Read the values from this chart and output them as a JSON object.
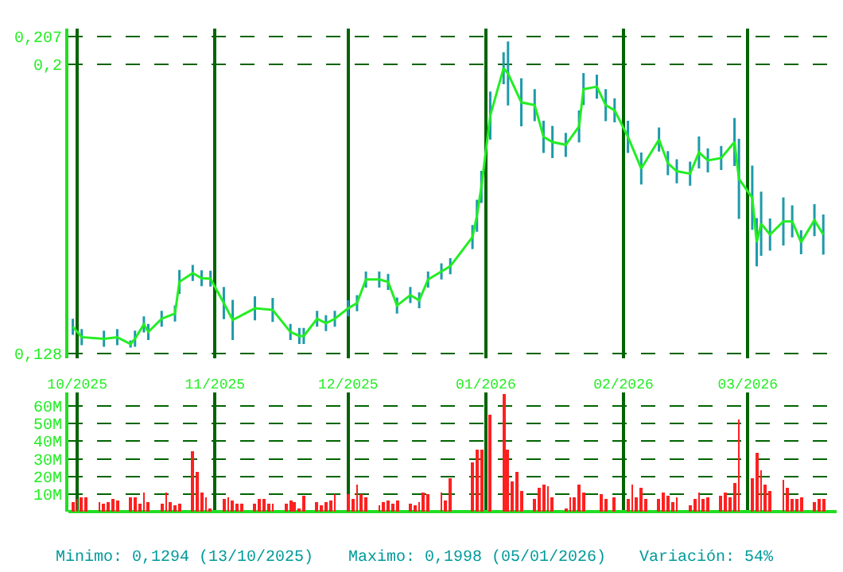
{
  "chart_data": [
    {
      "type": "line",
      "marker": "none",
      "line_style": "solid",
      "grid": true,
      "tick_labels": "y",
      "x": [
        "2025-09-30",
        "2025-10-02",
        "2025-10-07",
        "2025-10-10",
        "2025-10-13",
        "2025-10-14",
        "2025-10-16",
        "2025-10-17",
        "2025-10-20",
        "2025-10-23",
        "2025-10-24",
        "2025-10-27",
        "2025-10-29",
        "2025-10-31",
        "2025-11-03",
        "2025-11-05",
        "2025-11-10",
        "2025-11-14",
        "2025-11-18",
        "2025-11-20",
        "2025-11-21",
        "2025-11-24",
        "2025-11-26",
        "2025-11-28",
        "2025-12-01",
        "2025-12-03",
        "2025-12-05",
        "2025-12-08",
        "2025-12-10",
        "2025-12-12",
        "2025-12-15",
        "2025-12-17",
        "2025-12-19",
        "2025-12-22",
        "2025-12-24",
        "2025-12-29",
        "2025-12-30",
        "2025-12-31",
        "2026-01-02",
        "2026-01-05",
        "2026-01-06",
        "2026-01-09",
        "2026-01-12",
        "2026-01-14",
        "2026-01-16",
        "2026-01-19",
        "2026-01-22",
        "2026-01-23",
        "2026-01-26",
        "2026-01-28",
        "2026-01-30",
        "2026-02-02",
        "2026-02-05",
        "2026-02-09",
        "2026-02-11",
        "2026-02-13",
        "2026-02-16",
        "2026-02-18",
        "2026-02-20",
        "2026-02-23",
        "2026-02-26",
        "2026-02-27",
        "2026-03-02",
        "2026-03-03",
        "2026-03-04",
        "2026-03-06",
        "2026-03-09",
        "2026-03-11",
        "2026-03-13",
        "2026-03-16",
        "2026-03-18"
      ],
      "series": [
        {
          "color": "#22ee22",
          "values": [
            0.1346,
            0.132,
            0.1316,
            0.132,
            0.1303,
            0.1316,
            0.1352,
            0.1333,
            0.1366,
            0.1379,
            0.1458,
            0.148,
            0.1467,
            0.1466,
            0.1405,
            0.1363,
            0.1392,
            0.1388,
            0.1333,
            0.1323,
            0.1323,
            0.1366,
            0.1355,
            0.1366,
            0.1392,
            0.1405,
            0.1464,
            0.1464,
            0.1458,
            0.1399,
            0.1425,
            0.1412,
            0.1464,
            0.1484,
            0.1497,
            0.157,
            0.1623,
            0.1695,
            0.1873,
            0.1991,
            0.1978,
            0.1906,
            0.1899,
            0.182,
            0.1807,
            0.18,
            0.1846,
            0.1939,
            0.1945,
            0.1899,
            0.1886,
            0.182,
            0.1741,
            0.1813,
            0.1754,
            0.1734,
            0.1728,
            0.1781,
            0.1761,
            0.1767,
            0.1807,
            0.1715,
            0.1668,
            0.1557,
            0.1603,
            0.1576,
            0.1609,
            0.1609,
            0.1557,
            0.1612,
            0.1576
          ],
          "errors": [
            0.002,
            0.002,
            0.002,
            0.002,
            0.0009,
            0.002,
            0.002,
            0.002,
            0.002,
            0.002,
            0.003,
            0.002,
            0.002,
            0.002,
            0.004,
            0.005,
            0.003,
            0.003,
            0.002,
            0.002,
            0.002,
            0.002,
            0.002,
            0.002,
            0.002,
            0.002,
            0.002,
            0.002,
            0.002,
            0.002,
            0.002,
            0.002,
            0.002,
            0.002,
            0.002,
            0.003,
            0.004,
            0.004,
            0.006,
            0.004,
            0.008,
            0.006,
            0.004,
            0.004,
            0.004,
            0.003,
            0.004,
            0.004,
            0.003,
            0.004,
            0.003,
            0.004,
            0.004,
            0.003,
            0.003,
            0.003,
            0.003,
            0.004,
            0.003,
            0.003,
            0.006,
            0.01,
            0.008,
            0.006,
            0.008,
            0.004,
            0.006,
            0.004,
            0.003,
            0.004,
            0.005
          ]
        }
      ],
      "xlim": [
        "2025-09-29",
        "2026-03-21"
      ],
      "xticks": [
        {
          "value": "2025-10-01",
          "label": null
        },
        {
          "value": "2025-11-01",
          "label": null
        },
        {
          "value": "2025-12-01",
          "label": null
        },
        {
          "value": "2026-01-01",
          "label": null
        },
        {
          "value": "2026-02-01",
          "label": null
        },
        {
          "value": "2026-03-01",
          "label": null
        }
      ],
      "ylim": [
        0.1268,
        0.209
      ],
      "yticks": [
        {
          "value": 0.128,
          "label": "0,128"
        },
        {
          "value": 0.2,
          "label": "0,2"
        },
        {
          "value": 0.207,
          "label": "0,207"
        }
      ]
    },
    {
      "type": "bar",
      "grid": true,
      "x": [
        "2025-09-30",
        "2025-10-01",
        "2025-10-02",
        "2025-10-03",
        "2025-10-06",
        "2025-10-07",
        "2025-10-08",
        "2025-10-09",
        "2025-10-10",
        "2025-10-13",
        "2025-10-14",
        "2025-10-15",
        "2025-10-16",
        "2025-10-17",
        "2025-10-20",
        "2025-10-21",
        "2025-10-22",
        "2025-10-23",
        "2025-10-24",
        "2025-10-27",
        "2025-10-28",
        "2025-10-29",
        "2025-10-30",
        "2025-10-31",
        "2025-11-03",
        "2025-11-04",
        "2025-11-05",
        "2025-11-06",
        "2025-11-07",
        "2025-11-10",
        "2025-11-11",
        "2025-11-12",
        "2025-11-13",
        "2025-11-14",
        "2025-11-17",
        "2025-11-18",
        "2025-11-19",
        "2025-11-20",
        "2025-11-21",
        "2025-11-24",
        "2025-11-25",
        "2025-11-26",
        "2025-11-27",
        "2025-11-28",
        "2025-12-01",
        "2025-12-02",
        "2025-12-03",
        "2025-12-04",
        "2025-12-05",
        "2025-12-08",
        "2025-12-09",
        "2025-12-10",
        "2025-12-11",
        "2025-12-12",
        "2025-12-15",
        "2025-12-16",
        "2025-12-17",
        "2025-12-18",
        "2025-12-19",
        "2025-12-22",
        "2025-12-23",
        "2025-12-24",
        "2025-12-29",
        "2025-12-30",
        "2025-12-31",
        "2026-01-02",
        "2026-01-05",
        "2026-01-06",
        "2026-01-07",
        "2026-01-08",
        "2026-01-09",
        "2026-01-12",
        "2026-01-13",
        "2026-01-14",
        "2026-01-15",
        "2026-01-16",
        "2026-01-19",
        "2026-01-20",
        "2026-01-21",
        "2026-01-22",
        "2026-01-23",
        "2026-01-27",
        "2026-01-28",
        "2026-01-30",
        "2026-02-02",
        "2026-02-03",
        "2026-02-04",
        "2026-02-05",
        "2026-02-06",
        "2026-02-09",
        "2026-02-10",
        "2026-02-11",
        "2026-02-12",
        "2026-02-13",
        "2026-02-16",
        "2026-02-17",
        "2026-02-18",
        "2026-02-19",
        "2026-02-20",
        "2026-02-23",
        "2026-02-24",
        "2026-02-25",
        "2026-02-26",
        "2026-02-27",
        "2026-03-02",
        "2026-03-03",
        "2026-03-04",
        "2026-03-05",
        "2026-03-06",
        "2026-03-09",
        "2026-03-10",
        "2026-03-11",
        "2026-03-12",
        "2026-03-13",
        "2026-03-16",
        "2026-03-17",
        "2026-03-18"
      ],
      "series": [
        {
          "color": "#ff2020",
          "values": [
            5,
            7,
            8,
            8,
            5,
            4,
            5,
            7,
            6,
            8,
            8,
            4,
            11,
            5,
            4,
            11,
            5,
            3,
            4,
            34,
            22,
            11,
            8,
            1,
            7,
            8,
            6,
            4,
            4,
            4,
            7,
            7,
            4,
            4,
            4,
            6,
            5,
            1,
            9,
            5,
            3,
            5,
            6,
            10,
            10,
            7,
            15,
            10,
            8,
            3,
            5,
            6,
            4,
            6,
            4,
            3,
            5,
            11,
            10,
            11,
            6,
            19,
            28,
            35,
            35,
            55,
            67,
            35,
            17,
            22,
            12,
            7,
            13,
            15,
            14,
            8,
            1,
            8,
            8,
            15,
            11,
            10,
            7,
            8,
            7,
            15,
            8,
            13,
            7,
            7,
            11,
            9,
            5,
            8,
            3,
            7,
            11,
            7,
            8,
            9,
            11,
            8,
            16,
            52,
            19,
            33,
            23,
            15,
            12,
            18,
            13,
            7,
            7,
            8,
            5,
            7,
            7
          ]
        }
      ],
      "xlim": [
        "2025-09-29",
        "2026-03-21"
      ],
      "xticks": [
        {
          "value": "2025-10-01",
          "label": "10/2025"
        },
        {
          "value": "2025-11-01",
          "label": "11/2025"
        },
        {
          "value": "2025-12-01",
          "label": "12/2025"
        },
        {
          "value": "2026-01-01",
          "label": "01/2026"
        },
        {
          "value": "2026-02-01",
          "label": "02/2026"
        },
        {
          "value": "2026-03-01",
          "label": "03/2026"
        }
      ],
      "ylim": [
        0,
        67.6
      ],
      "yticks": [
        {
          "value": 10,
          "label": "10M"
        },
        {
          "value": 20,
          "label": "20M"
        },
        {
          "value": 30,
          "label": "30M"
        },
        {
          "value": 40,
          "label": "40M"
        },
        {
          "value": 50,
          "label": "50M"
        },
        {
          "value": 60,
          "label": "60M"
        }
      ],
      "annotations": [
        "Minimo: 0,1294 (13/10/2025)",
        "Maximo: 0,1998 (05/01/2026)",
        "Variación: 54%"
      ]
    }
  ]
}
